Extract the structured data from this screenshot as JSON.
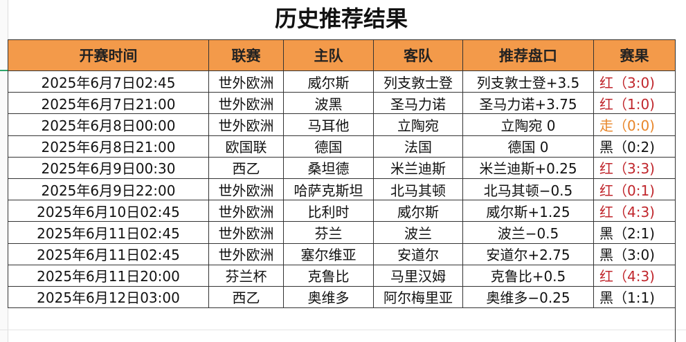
{
  "title": "历史推荐结果",
  "headers": [
    "开赛时间",
    "联赛",
    "主队",
    "客队",
    "推荐盘口",
    "赛果"
  ],
  "rows": [
    {
      "time": "2025年6月7日02:45",
      "league": "世外欧洲",
      "home": "威尔斯",
      "away": "列支敦士登",
      "pick": "列支敦士登+3.5",
      "result": "红（3:0)",
      "status": "red"
    },
    {
      "time": "2025年6月7日21:00",
      "league": "世外欧洲",
      "home": "波黑",
      "away": "圣马力诺",
      "pick": "圣马力诺+3.75",
      "result": "红（1:0)",
      "status": "red"
    },
    {
      "time": "2025年6月8日00:00",
      "league": "世外欧洲",
      "home": "马耳他",
      "away": "立陶宛",
      "pick": "立陶宛 0",
      "result": "走（0:0)",
      "status": "orange"
    },
    {
      "time": "2025年6月8日21:00",
      "league": "欧国联",
      "home": "德国",
      "away": "法国",
      "pick": "德国 0",
      "result": "黑（0:2)",
      "status": "black"
    },
    {
      "time": "2025年6月9日00:30",
      "league": "西乙",
      "home": "桑坦德",
      "away": "米兰迪斯",
      "pick": "米兰迪斯+0.25",
      "result": "红（3:3)",
      "status": "red"
    },
    {
      "time": "2025年6月9日22:00",
      "league": "世外欧洲",
      "home": "哈萨克斯坦",
      "away": "北马其顿",
      "pick": "北马其顿−0.5",
      "result": "红（0:1)",
      "status": "red"
    },
    {
      "time": "2025年6月10日02:45",
      "league": "世外欧洲",
      "home": "比利时",
      "away": "威尔斯",
      "pick": "威尔斯+1.25",
      "result": "红（4:3)",
      "status": "red"
    },
    {
      "time": "2025年6月11日02:45",
      "league": "世外欧洲",
      "home": "芬兰",
      "away": "波兰",
      "pick": "波兰−0.5",
      "result": "黑（2:1)",
      "status": "black"
    },
    {
      "time": "2025年6月11日02:45",
      "league": "世外欧洲",
      "home": "塞尔维亚",
      "away": "安道尔",
      "pick": "安道尔+2.75",
      "result": "黑（3:0)",
      "status": "black"
    },
    {
      "time": "2025年6月11日20:00",
      "league": "芬兰杯",
      "home": "克鲁比",
      "away": "马里汉姆",
      "pick": "克鲁比+0.5",
      "result": "红（4:3)",
      "status": "red"
    },
    {
      "time": "2025年6月12日03:00",
      "league": "西乙",
      "home": "奥维多",
      "away": "阿尔梅里亚",
      "pick": "奥维多−0.25",
      "result": "黑（1:1)",
      "status": "black"
    }
  ],
  "colors": {
    "header_bg": "#f39a4a",
    "red": "#c0262c",
    "orange": "#e8862a",
    "black": "#111111"
  }
}
